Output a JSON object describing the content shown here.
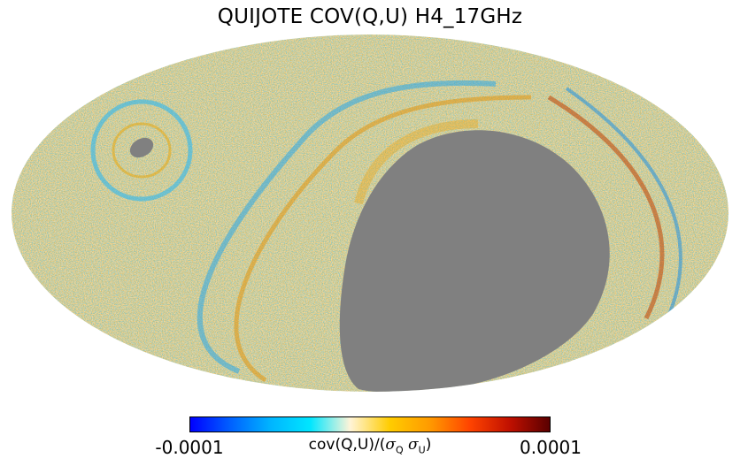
{
  "title": "QUIJOTE COV(Q,U) H4_17GHz",
  "colorbar": {
    "min_label": "-0.0001",
    "max_label": "0.0001",
    "label_prefix": "cov(Q,U)/(",
    "sigma": "σ",
    "sub_q": "Q",
    "sub_u": "U",
    "label_suffix": ")",
    "colors": [
      "#0000ff",
      "#0060ff",
      "#00b4ff",
      "#00e6ff",
      "#fff4d8",
      "#ffcc00",
      "#ff9a00",
      "#ff4400",
      "#c01000",
      "#5a0000"
    ]
  },
  "map": {
    "projection": "mollweide",
    "mask_color": "#808080",
    "background_tone": "#f3d9a0"
  }
}
